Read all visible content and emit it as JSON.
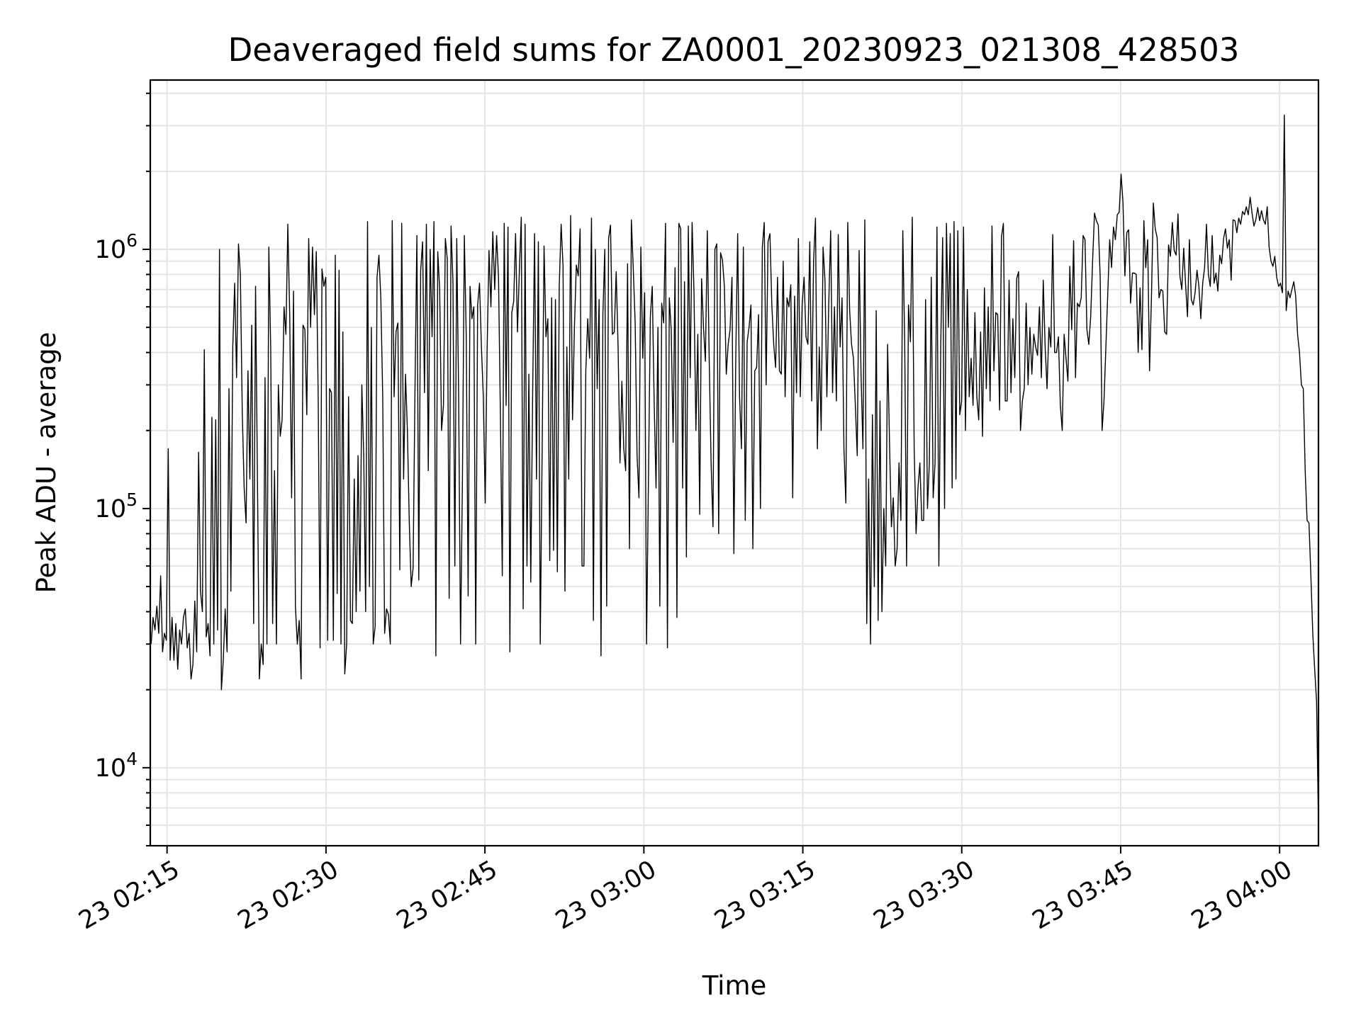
{
  "chart_data": {
    "type": "line",
    "title": "Deaveraged field sums for ZA0001_20230923_021308_428503",
    "xlabel": "Time",
    "ylabel": "Peak ADU - average",
    "yscale": "log",
    "ylim": [
      5000,
      4500000
    ],
    "xlim": [
      "2023-09-23 02:13:25",
      "2023-09-23 04:03:40"
    ],
    "grid": true,
    "x_ticks": [
      {
        "value": "2023-09-23 02:15",
        "label": "23 02:15"
      },
      {
        "value": "2023-09-23 02:30",
        "label": "23 02:30"
      },
      {
        "value": "2023-09-23 02:45",
        "label": "23 02:45"
      },
      {
        "value": "2023-09-23 03:00",
        "label": "23 03:00"
      },
      {
        "value": "2023-09-23 03:15",
        "label": "23 03:15"
      },
      {
        "value": "2023-09-23 03:30",
        "label": "23 03:30"
      },
      {
        "value": "2023-09-23 03:45",
        "label": "23 03:45"
      },
      {
        "value": "2023-09-23 04:00",
        "label": "23 04:00"
      }
    ],
    "y_ticks": [
      {
        "value": 10000,
        "base": "10",
        "exp": "4"
      },
      {
        "value": 100000,
        "base": "10",
        "exp": "5"
      },
      {
        "value": 1000000,
        "base": "10",
        "exp": "6"
      }
    ],
    "series": [
      {
        "color": "#000000",
        "x_start": "2023-09-23 02:13:30",
        "x_end": "2023-09-23 04:03:40",
        "values": [
          30000,
          38000,
          34000,
          42000,
          33000,
          55000,
          28000,
          33000,
          31000,
          170000,
          26000,
          38000,
          26000,
          36000,
          24000,
          34000,
          30000,
          38000,
          41000,
          29000,
          33000,
          22000,
          25000,
          44000,
          28000,
          165000,
          48000,
          40000,
          410000,
          32000,
          36000,
          27000,
          225000,
          30000,
          220000,
          34000,
          1000000,
          20000,
          26000,
          41000,
          28000,
          290000,
          48000,
          420000,
          740000,
          320000,
          1050000,
          800000,
          235000,
          120000,
          88000,
          340000,
          130000,
          510000,
          36000,
          720000,
          130000,
          22000,
          30000,
          25000,
          320000,
          30000,
          1020000,
          410000,
          36000,
          140000,
          30000,
          300000,
          190000,
          220000,
          600000,
          470000,
          1250000,
          560000,
          110000,
          690000,
          42000,
          30000,
          37000,
          22000,
          510000,
          490000,
          230000,
          1100000,
          500000,
          1020000,
          560000,
          980000,
          270000,
          29000,
          840000,
          720000,
          780000,
          31000,
          290000,
          280000,
          31000,
          950000,
          47000,
          830000,
          30000,
          480000,
          23000,
          30000,
          270000,
          37000,
          36000,
          130000,
          40000,
          160000,
          48000,
          300000,
          160000,
          40000,
          1280000,
          50000,
          500000,
          30000,
          35000,
          780000,
          950000,
          650000,
          270000,
          33000,
          41000,
          39000,
          30000,
          1290000,
          270000,
          480000,
          520000,
          58000,
          1260000,
          130000,
          330000,
          200000,
          88000,
          50000,
          59000,
          290000,
          1130000,
          53000,
          830000,
          1070000,
          280000,
          1250000,
          140000,
          1000000,
          460000,
          1280000,
          27000,
          980000,
          700000,
          200000,
          250000,
          1100000,
          920000,
          45000,
          1230000,
          750000,
          60000,
          1100000,
          270000,
          30000,
          130000,
          1130000,
          460000,
          46000,
          720000,
          540000,
          600000,
          30000,
          610000,
          740000,
          420000,
          270000,
          105000,
          410000,
          990000,
          600000,
          1170000,
          700000,
          1130000,
          780000,
          230000,
          55000,
          1260000,
          250000,
          1220000,
          28000,
          570000,
          630000,
          1150000,
          480000,
          830000,
          1330000,
          41000,
          1250000,
          60000,
          330000,
          52000,
          280000,
          1150000,
          130000,
          1070000,
          30000,
          170000,
          1030000,
          460000,
          540000,
          63000,
          650000,
          69000,
          640000,
          57000,
          720000,
          1250000,
          860000,
          48000,
          420000,
          130000,
          1350000,
          220000,
          500000,
          870000,
          790000,
          1200000,
          60000,
          60000,
          340000,
          540000,
          380000,
          1320000,
          37000,
          1000000,
          290000,
          640000,
          27000,
          560000,
          1000000,
          42000,
          1100000,
          1240000,
          470000,
          480000,
          820000,
          420000,
          150000,
          310000,
          170000,
          140000,
          880000,
          70000,
          1300000,
          840000,
          520000,
          160000,
          110000,
          1020000,
          380000,
          680000,
          30000,
          130000,
          550000,
          720000,
          260000,
          120000,
          500000,
          42000,
          620000,
          520000,
          1260000,
          29000,
          650000,
          490000,
          180000,
          850000,
          38000,
          1260000,
          1200000,
          120000,
          750000,
          65000,
          1230000,
          320000,
          1270000,
          680000,
          200000,
          470000,
          95000,
          770000,
          500000,
          370000,
          1180000,
          380000,
          150000,
          85000,
          1000000,
          1050000,
          80000,
          970000,
          910000,
          720000,
          330000,
          430000,
          490000,
          780000,
          67000,
          380000,
          1150000,
          270000,
          170000,
          1020000,
          90000,
          440000,
          500000,
          610000,
          70000,
          340000,
          350000,
          560000,
          100000,
          1020000,
          1270000,
          300000,
          1070000,
          1150000,
          610000,
          430000,
          350000,
          780000,
          340000,
          330000,
          900000,
          270000,
          650000,
          600000,
          730000,
          110000,
          660000,
          280000,
          1100000,
          270000,
          620000,
          780000,
          460000,
          430000,
          1070000,
          260000,
          900000,
          1320000,
          170000,
          420000,
          200000,
          1020000,
          760000,
          270000,
          620000,
          1180000,
          280000,
          600000,
          260000,
          1140000,
          420000,
          650000,
          170000,
          105000,
          1270000,
          580000,
          430000,
          380000,
          250000,
          160000,
          990000,
          330000,
          170000,
          1300000,
          36000,
          130000,
          30000,
          230000,
          50000,
          580000,
          37000,
          260000,
          40000,
          100000,
          60000,
          430000,
          180000,
          85000,
          110000,
          60000,
          70000,
          150000,
          90000,
          1180000,
          440000,
          60000,
          610000,
          440000,
          1330000,
          170000,
          80000,
          120000,
          150000,
          90000,
          90000,
          640000,
          100000,
          150000,
          780000,
          110000,
          150000,
          1220000,
          60000,
          430000,
          1110000,
          100000,
          1260000,
          500000,
          1150000,
          120000,
          1280000,
          130000,
          1180000,
          230000,
          260000,
          1220000,
          200000,
          700000,
          270000,
          380000,
          250000,
          570000,
          270000,
          220000,
          480000,
          190000,
          710000,
          290000,
          600000,
          260000,
          1230000,
          340000,
          570000,
          560000,
          240000,
          1120000,
          1260000,
          260000,
          260000,
          760000,
          280000,
          540000,
          320000,
          770000,
          820000,
          200000,
          260000,
          290000,
          620000,
          300000,
          500000,
          330000,
          470000,
          420000,
          390000,
          600000,
          320000,
          760000,
          420000,
          290000,
          500000,
          420000,
          1140000,
          400000,
          400000,
          460000,
          250000,
          200000,
          470000,
          380000,
          310000,
          860000,
          490000,
          1080000,
          320000,
          620000,
          600000,
          650000,
          1130000,
          1090000,
          490000,
          430000,
          550000,
          900000,
          1380000,
          1290000,
          1240000,
          780000,
          200000,
          260000,
          420000,
          680000,
          1090000,
          850000,
          1220000,
          1090000,
          1360000,
          1390000,
          1950000,
          1520000,
          790000,
          1160000,
          1190000,
          620000,
          810000,
          810000,
          800000,
          400000,
          710000,
          410000,
          1290000,
          850000,
          1090000,
          340000,
          650000,
          1510000,
          1200000,
          1110000,
          650000,
          700000,
          690000,
          480000,
          470000,
          1040000,
          940000,
          1270000,
          990000,
          950000,
          1370000,
          790000,
          700000,
          1010000,
          730000,
          550000,
          1090000,
          640000,
          610000,
          680000,
          830000,
          720000,
          540000,
          740000,
          850000,
          1250000,
          800000,
          720000,
          1130000,
          740000,
          810000,
          690000,
          950000,
          880000,
          1100000,
          1200000,
          1010000,
          1090000,
          760000,
          1300000,
          1290000,
          1160000,
          1320000,
          1250000,
          1400000,
          1360000,
          1460000,
          1360000,
          1590000,
          1380000,
          1230000,
          1300000,
          1450000,
          1290000,
          1410000,
          1300000,
          1250000,
          1460000,
          1020000,
          900000,
          860000,
          940000,
          780000,
          720000,
          740000,
          680000,
          3300000,
          580000,
          690000,
          650000,
          700000,
          750000,
          660000,
          470000,
          400000,
          300000,
          290000,
          140000,
          90000,
          88000,
          55000,
          33000,
          24000,
          18000,
          6000
        ]
      }
    ]
  }
}
